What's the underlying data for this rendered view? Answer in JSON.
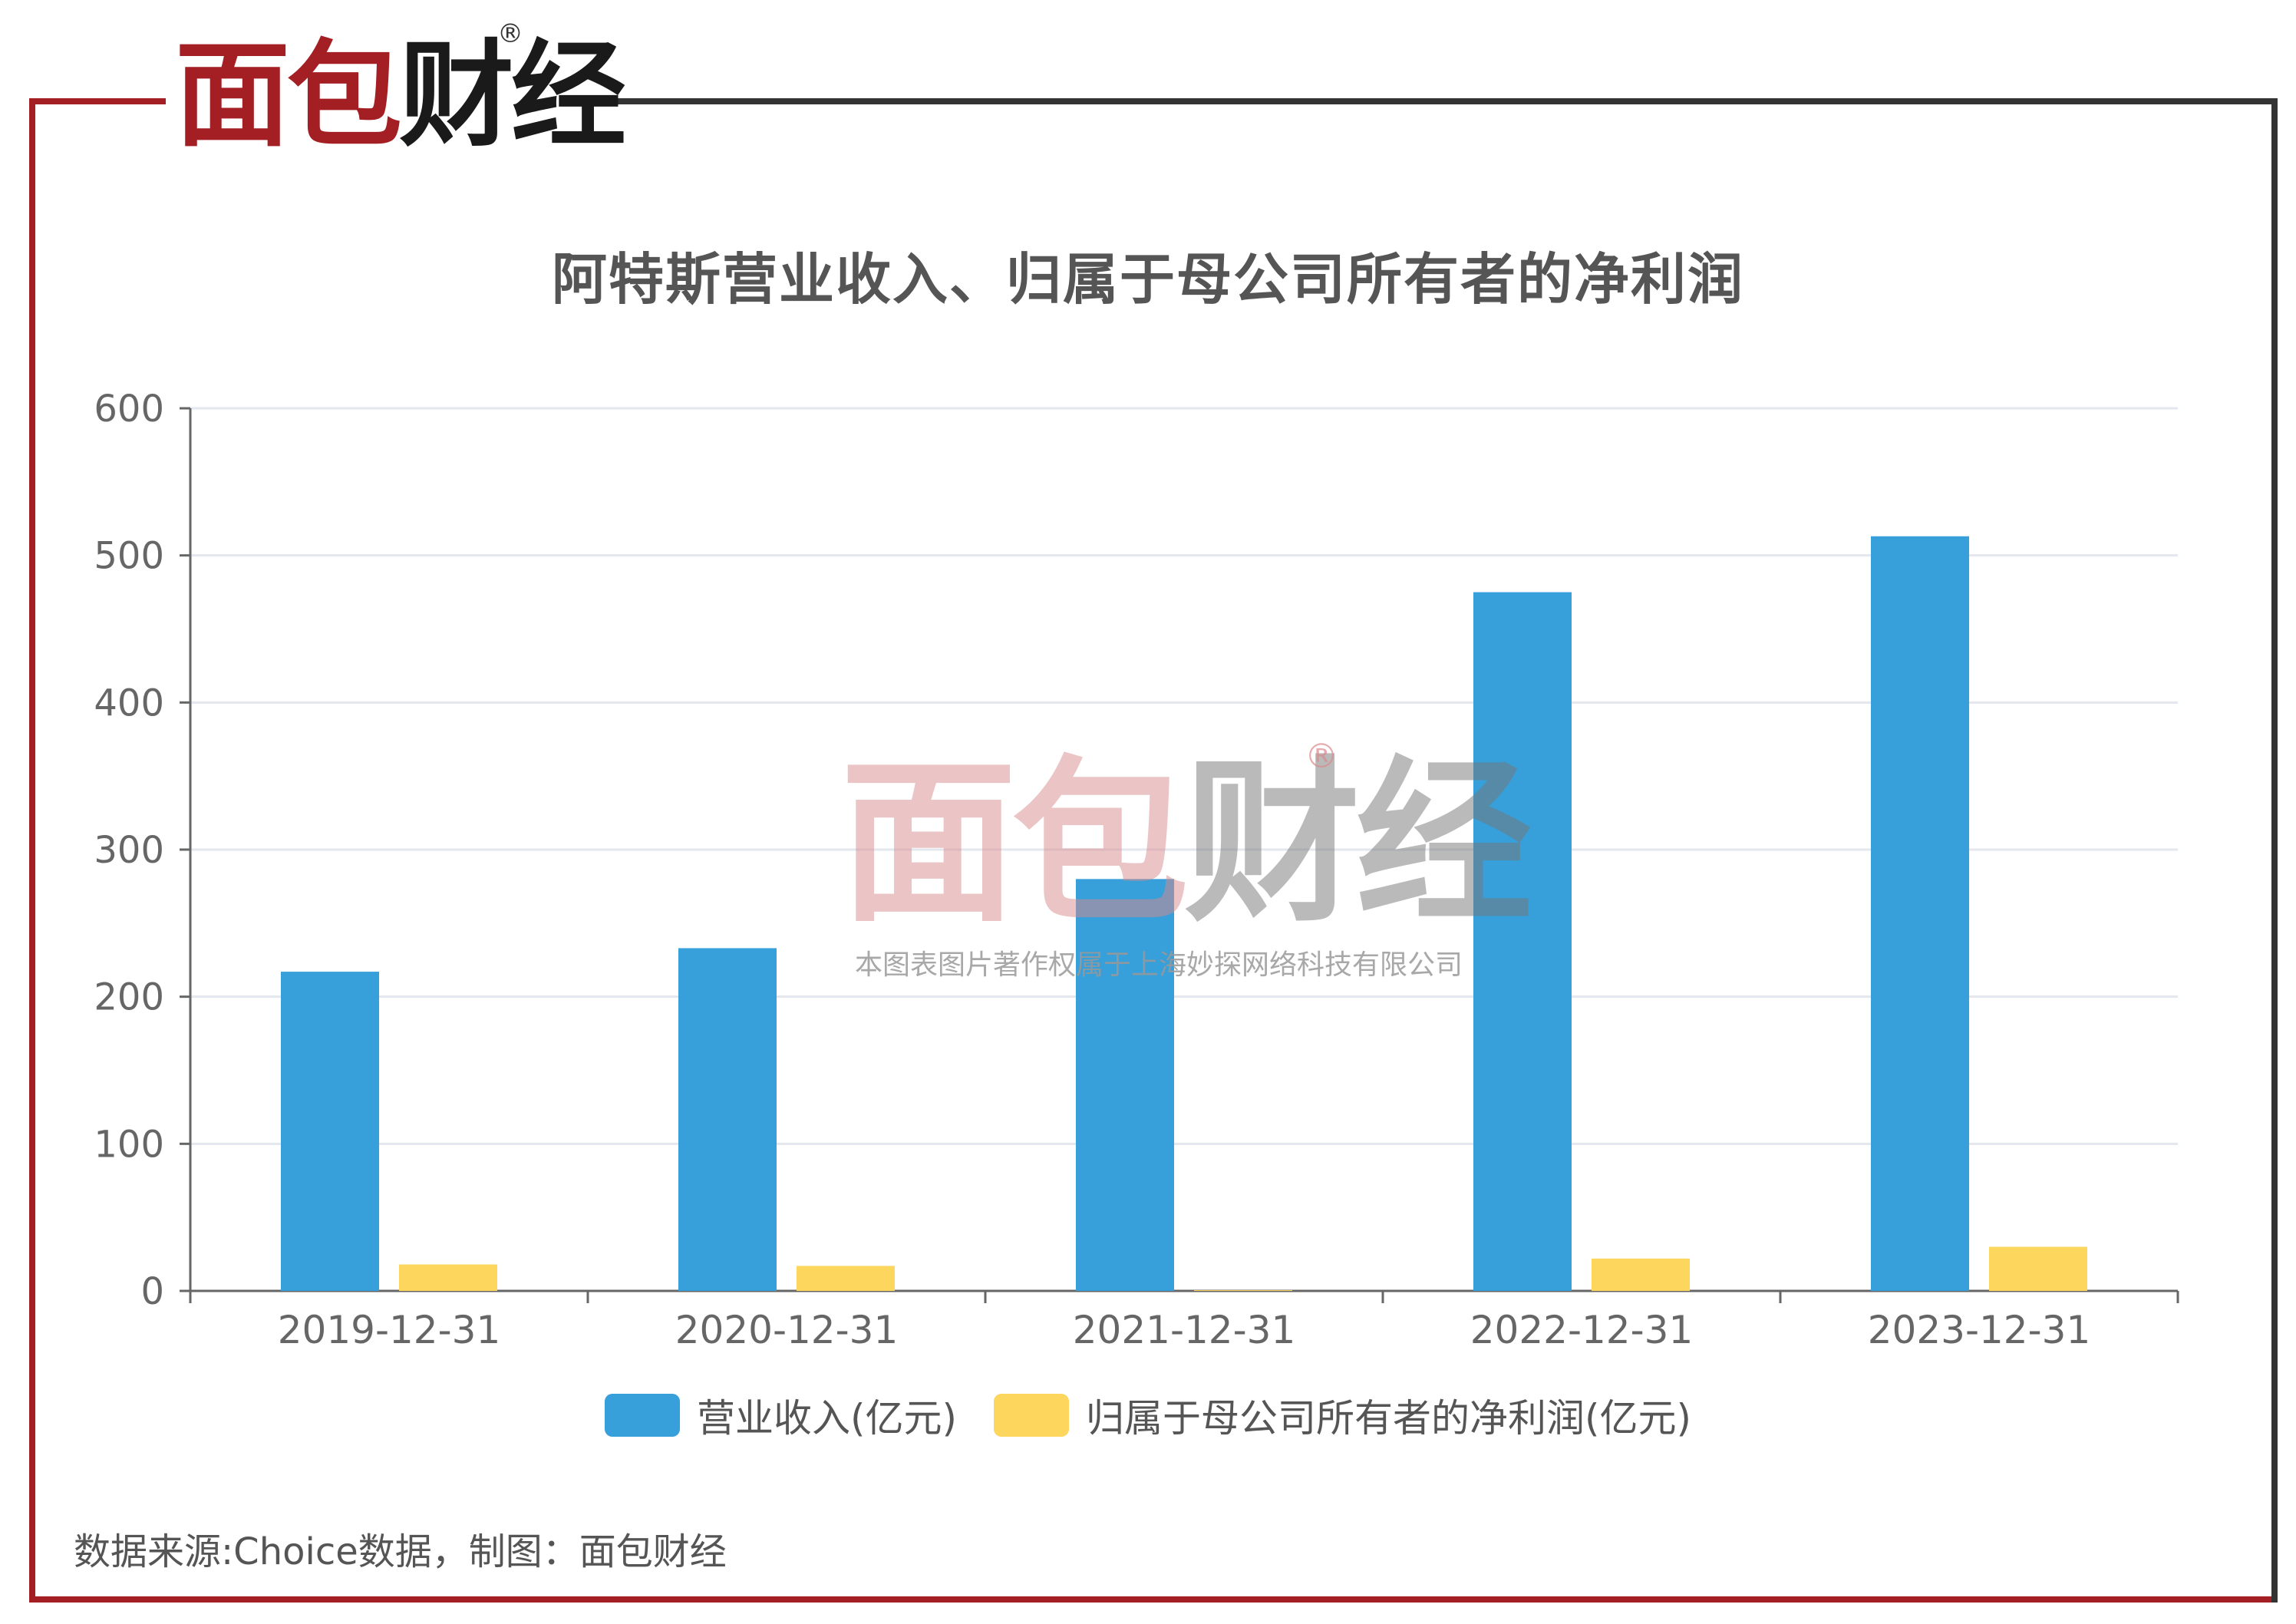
{
  "brand": {
    "logo_text_red": "面包",
    "logo_text_dark": "财经",
    "registered_mark": "®"
  },
  "watermark": {
    "text_red": "面包",
    "text_gray": "财经",
    "registered_mark": "®",
    "copyright": "本图表图片著作权属于上海妙探网络科技有限公司"
  },
  "source_note": "数据来源:Choice数据，制图：面包财经",
  "colors": {
    "revenue": "#379fd9",
    "net_profit": "#fdd75d",
    "frame_red": "#a31f24",
    "frame_dark": "#333333"
  },
  "chart_data": {
    "type": "bar",
    "title": "阿特斯营业收入、归属于母公司所有者的净利润",
    "xlabel": "",
    "ylabel": "",
    "categories": [
      "2019-12-31",
      "2020-12-31",
      "2021-12-31",
      "2022-12-31",
      "2023-12-31"
    ],
    "series": [
      {
        "name": "营业收入(亿元)",
        "values": [
          217,
          233,
          280,
          475,
          513
        ]
      },
      {
        "name": "归属于母公司所有者的净利润(亿元)",
        "values": [
          18,
          17,
          0.5,
          22,
          30
        ]
      }
    ],
    "ylim": [
      0,
      600
    ],
    "yticks": [
      0,
      100,
      200,
      300,
      400,
      500,
      600
    ],
    "grid": true,
    "legend_position": "bottom"
  }
}
